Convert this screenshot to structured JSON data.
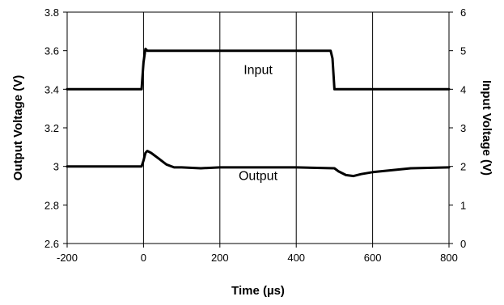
{
  "chart_data": {
    "type": "line",
    "xlabel": "Time (µs)",
    "ylabel": "Output Voltage (V)",
    "y2label": "Input Voltage (V)",
    "xlim": [
      -200,
      800
    ],
    "ylim": [
      2.6,
      3.8
    ],
    "y2lim": [
      0,
      6
    ],
    "xticks": [
      "-200",
      "0",
      "200",
      "400",
      "600",
      "800"
    ],
    "xtick_values": [
      -200,
      0,
      200,
      400,
      600,
      800
    ],
    "yticks": [
      "2.6",
      "2.8",
      "3",
      "3.2",
      "3.4",
      "3.6",
      "3.8"
    ],
    "ytick_values": [
      2.6,
      2.8,
      3.0,
      3.2,
      3.4,
      3.6,
      3.8
    ],
    "y2ticks": [
      "0",
      "1",
      "2",
      "3",
      "4",
      "5",
      "6"
    ],
    "y2tick_values": [
      0,
      1,
      2,
      3,
      4,
      5,
      6
    ],
    "grid": "vertical",
    "annotations": [
      {
        "text": "Input",
        "x": 300,
        "y": 3.48
      },
      {
        "text": "Output",
        "x": 300,
        "y": 2.93
      }
    ],
    "series": [
      {
        "axis": "right",
        "x": [
          -200,
          -5,
          0,
          5,
          10,
          20,
          100,
          200,
          300,
          400,
          490,
          495,
          500,
          600,
          700,
          800
        ],
        "y": [
          4.0,
          4.0,
          4.7,
          5.05,
          5.0,
          5.0,
          5.0,
          5.0,
          5.0,
          5.0,
          5.0,
          4.8,
          4.0,
          4.0,
          4.0,
          4.0
        ]
      },
      {
        "axis": "left",
        "x": [
          -200,
          -5,
          0,
          5,
          10,
          20,
          40,
          60,
          80,
          100,
          150,
          200,
          300,
          400,
          500,
          510,
          530,
          550,
          570,
          600,
          650,
          700,
          800
        ],
        "y": [
          3.0,
          3.0,
          3.03,
          3.07,
          3.08,
          3.07,
          3.04,
          3.01,
          2.995,
          2.995,
          2.99,
          2.995,
          2.995,
          2.995,
          2.99,
          2.975,
          2.955,
          2.95,
          2.96,
          2.97,
          2.98,
          2.99,
          2.995
        ]
      }
    ]
  }
}
